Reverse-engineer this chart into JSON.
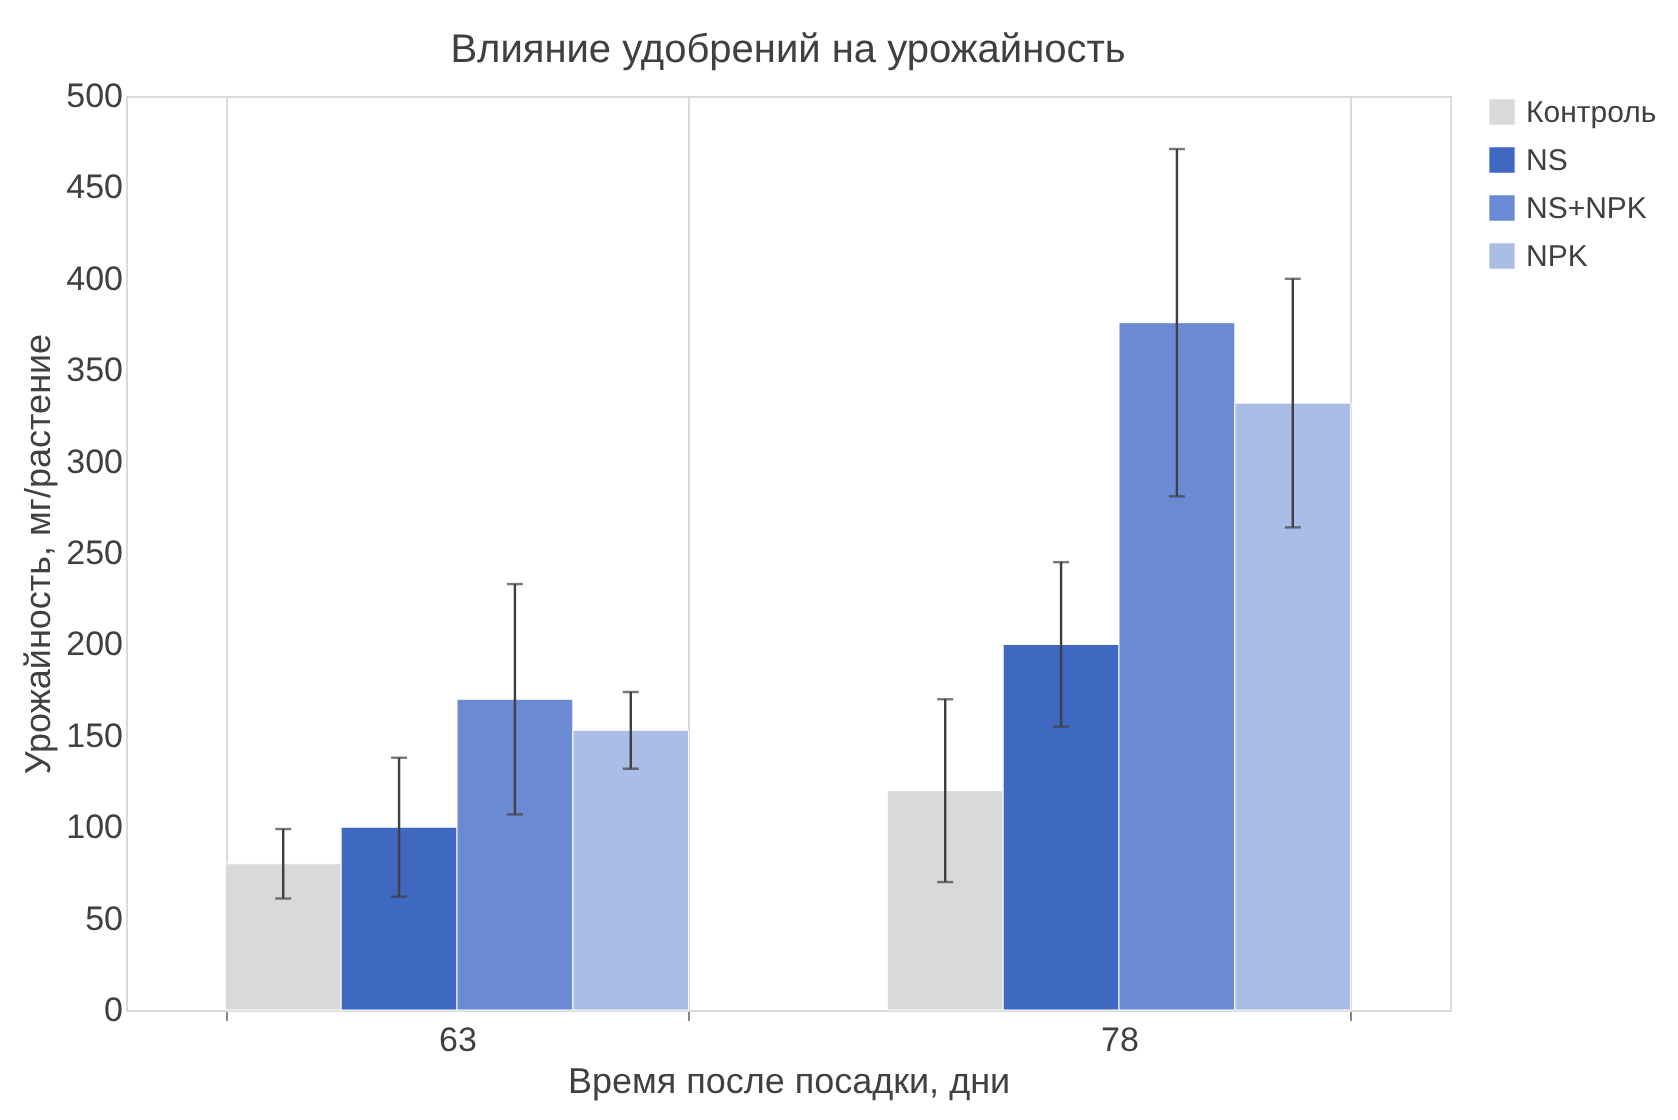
{
  "chart_data": {
    "type": "bar",
    "title": "Влияние удобрений на урожайность",
    "xlabel": "Время после посадки, дни",
    "ylabel": "Урожайность, мг/растение",
    "categories": [
      "63",
      "78"
    ],
    "series": [
      {
        "name": "Контроль",
        "color": "#d9d9d9",
        "values": [
          80,
          120
        ],
        "errors": [
          19,
          50
        ]
      },
      {
        "name": "NS",
        "color": "#3f68c0",
        "values": [
          100,
          200
        ],
        "errors": [
          38,
          45
        ]
      },
      {
        "name": "NS+NPK",
        "color": "#6a8ad4",
        "values": [
          170,
          376
        ],
        "errors": [
          63,
          95
        ]
      },
      {
        "name": "NPK",
        "color": "#a9bde6",
        "values": [
          153,
          332
        ],
        "errors": [
          21,
          68
        ]
      }
    ],
    "ylim": [
      0,
      500
    ],
    "yticks": [
      0,
      50,
      100,
      150,
      200,
      250,
      300,
      350,
      400,
      450,
      500
    ],
    "grid": false,
    "legend": "right"
  }
}
